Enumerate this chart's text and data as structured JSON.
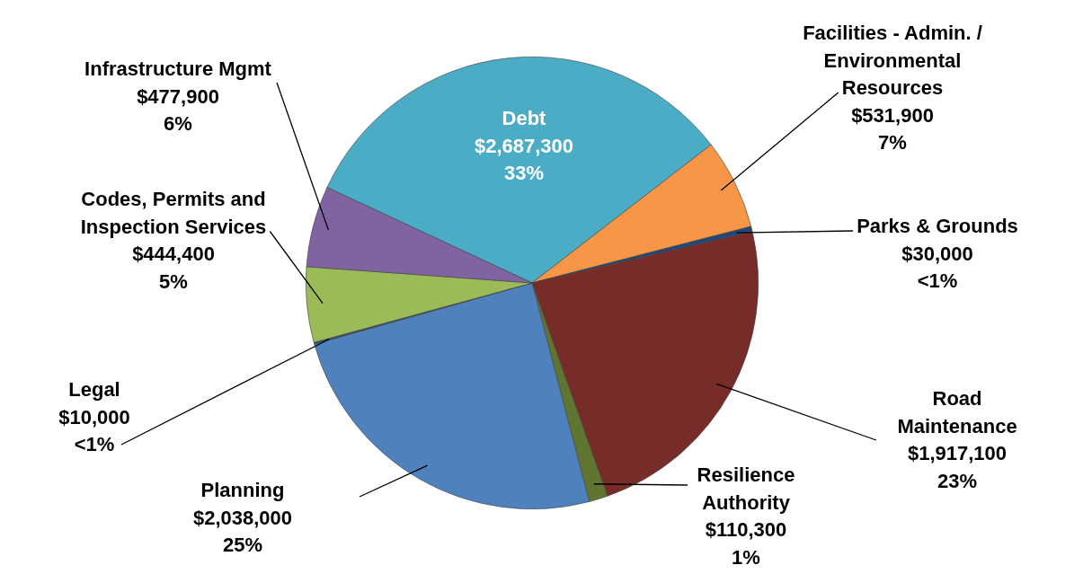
{
  "chart_data": {
    "type": "pie",
    "categories": [
      "Debt",
      "Facilities - Admin. / Environmental Resources",
      "Parks & Grounds",
      "Road Maintenance",
      "Resilience Authority",
      "Planning",
      "Legal",
      "Codes, Permits and Inspection Services",
      "Infrastructure Mgmt"
    ],
    "values": [
      2687300,
      531900,
      30000,
      1917100,
      110300,
      2038000,
      10000,
      444400,
      477900
    ],
    "value_labels": [
      "$2,687,300\n33%",
      "$531,900\n7%",
      "$30,000\n<1%",
      "$1,917,100\n23%",
      "$110,300\n1%",
      "$2,038,000\n25%",
      "$10,000\n<1%",
      "$444,400\n5%",
      "$477,900\n6%"
    ],
    "colors": [
      "#4bacc6",
      "#f79646",
      "#1f497d",
      "#772c2a",
      "#5f7530",
      "#4f81bd",
      "#2c4d75",
      "#9bbb59",
      "#8064a2"
    ],
    "legend": false
  }
}
